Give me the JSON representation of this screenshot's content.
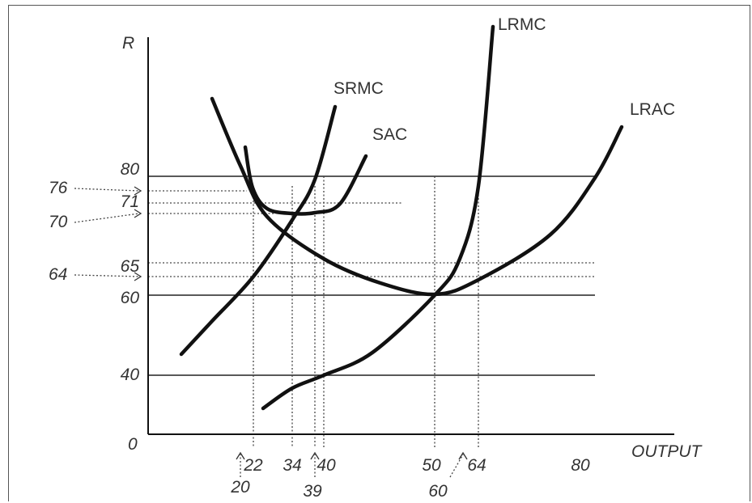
{
  "chart_data": {
    "type": "line",
    "title": "",
    "xlabel": "OUTPUT",
    "ylabel": "R",
    "origin_label": "0",
    "y_tick_labels": [
      "80",
      "71",
      "65",
      "60",
      "40"
    ],
    "y_arrow_labels": [
      "76",
      "70",
      "64"
    ],
    "x_tick_labels": [
      "22",
      "34",
      "40",
      "50",
      "64",
      "80"
    ],
    "x_arrow_labels": [
      "20",
      "39",
      "60"
    ],
    "series": [
      {
        "name": "SRMC",
        "x": [
          7,
          22,
          34,
          40
        ],
        "y": [
          40,
          64,
          71,
          80
        ]
      },
      {
        "name": "SAC",
        "x": [
          13,
          22,
          28,
          34,
          39,
          45
        ],
        "y": [
          96,
          76,
          71,
          70,
          71,
          76
        ]
      },
      {
        "name": "LRMC",
        "x": [
          23,
          34,
          50,
          60,
          64,
          67
        ],
        "y": [
          36,
          40,
          50,
          62,
          80,
          120
        ]
      },
      {
        "name": "LRAC",
        "x": [
          20,
          40,
          50,
          64,
          80
        ],
        "y": [
          80,
          64,
          60,
          65,
          80
        ]
      }
    ],
    "reference_lines": {
      "solid_y": [
        80,
        60,
        40
      ],
      "dotted_y": [
        76,
        71,
        70,
        65,
        64
      ],
      "dotted_x": [
        20,
        22,
        34,
        39,
        40,
        50,
        60,
        64
      ]
    }
  }
}
